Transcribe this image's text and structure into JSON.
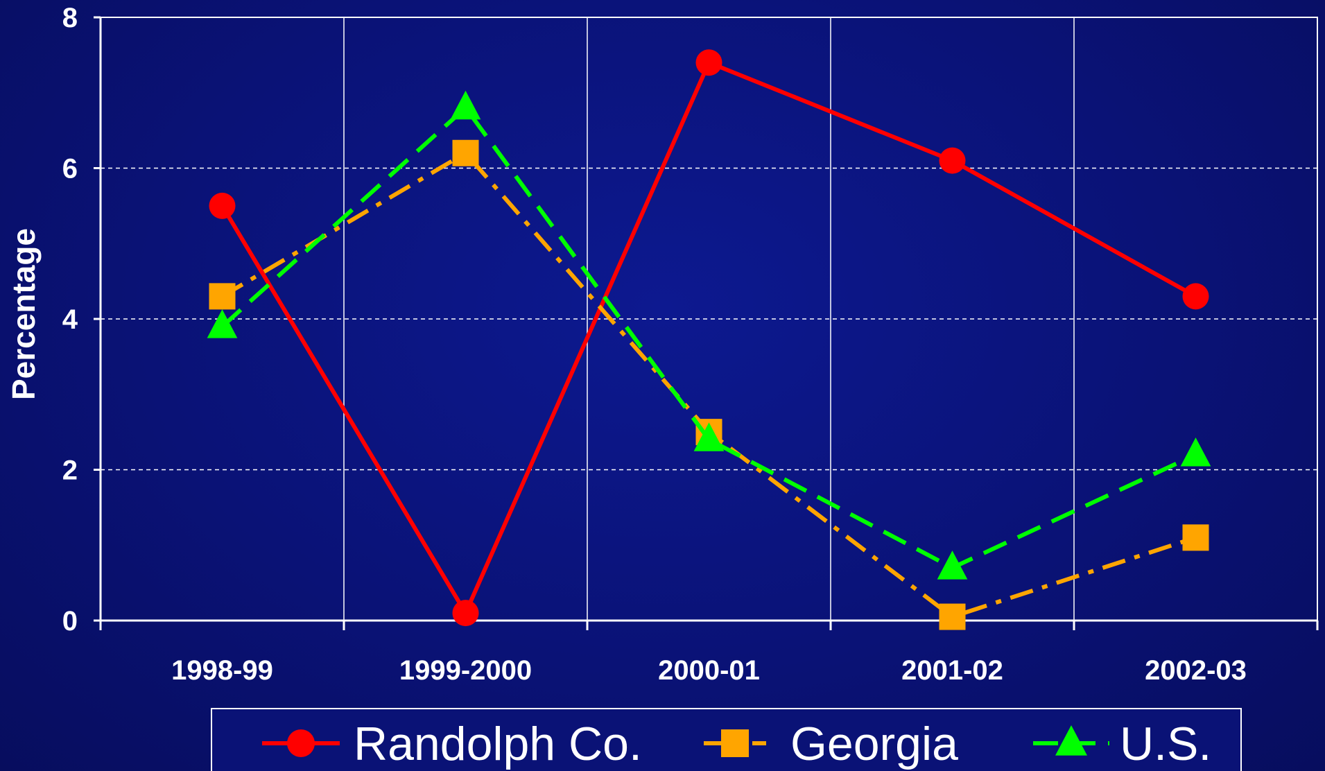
{
  "chart_data": {
    "type": "line",
    "title": "",
    "xlabel": "",
    "ylabel": "Percentage",
    "ylim": [
      0,
      8
    ],
    "yticks": [
      "0",
      "2",
      "4",
      "6",
      "8"
    ],
    "grid": true,
    "legend_placement": "bottom",
    "categories": [
      "1998-99",
      "1999-2000",
      "2000-01",
      "2001-02",
      "2002-03"
    ],
    "series": [
      {
        "name": "Randolph Co.",
        "values": [
          5.5,
          0.1,
          7.4,
          6.1,
          4.3
        ],
        "color": "#ff0000",
        "marker": "circle",
        "dash": "solid"
      },
      {
        "name": "Georgia",
        "values": [
          4.3,
          6.2,
          2.5,
          0.05,
          1.1
        ],
        "color": "#ffa500",
        "marker": "square",
        "dash": "dashdot"
      },
      {
        "name": "U.S.",
        "values": [
          3.9,
          6.8,
          2.4,
          0.7,
          2.2
        ],
        "color": "#00ff00",
        "marker": "triangle",
        "dash": "dashed"
      }
    ]
  }
}
